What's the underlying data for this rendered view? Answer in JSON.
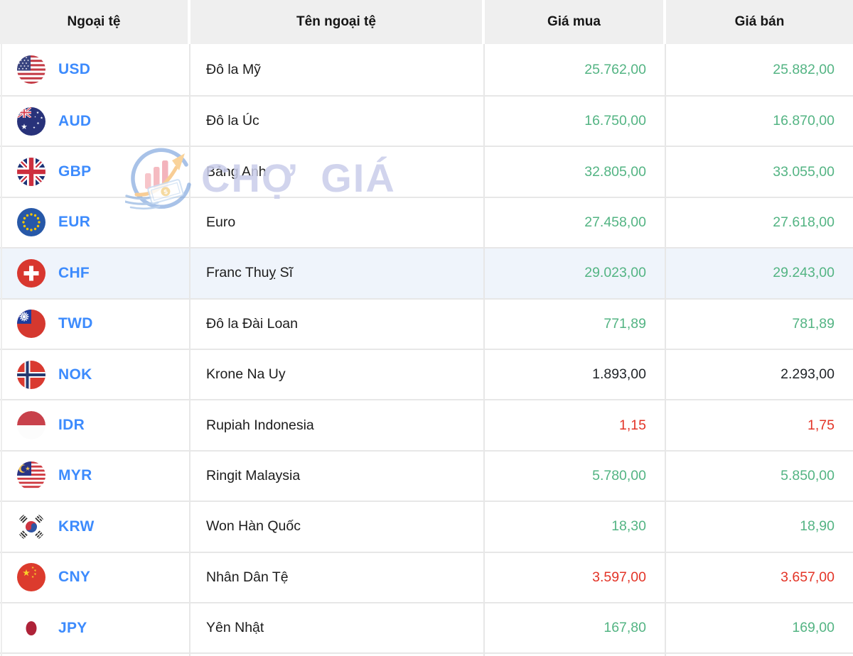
{
  "table": {
    "headers": [
      "Ngoại tệ",
      "Tên ngoại tệ",
      "Giá mua",
      "Giá bán"
    ],
    "rows": [
      {
        "code": "USD",
        "flag": "us",
        "name": "Đô la Mỹ",
        "buy": "25.762,00",
        "sell": "25.882,00",
        "trend": "up",
        "highlighted": false
      },
      {
        "code": "AUD",
        "flag": "australia",
        "name": "Đô la Úc",
        "buy": "16.750,00",
        "sell": "16.870,00",
        "trend": "up",
        "highlighted": false
      },
      {
        "code": "GBP",
        "flag": "uk",
        "name": "Bảng Anh",
        "buy": "32.805,00",
        "sell": "33.055,00",
        "trend": "up",
        "highlighted": false
      },
      {
        "code": "EUR",
        "flag": "eu",
        "name": "Euro",
        "buy": "27.458,00",
        "sell": "27.618,00",
        "trend": "up",
        "highlighted": false
      },
      {
        "code": "CHF",
        "flag": "switzerland",
        "name": "Franc Thuỵ Sĩ",
        "buy": "29.023,00",
        "sell": "29.243,00",
        "trend": "up",
        "highlighted": true
      },
      {
        "code": "TWD",
        "flag": "taiwan",
        "name": "Đô la Đài Loan",
        "buy": "771,89",
        "sell": "781,89",
        "trend": "up",
        "highlighted": false
      },
      {
        "code": "NOK",
        "flag": "norway",
        "name": "Krone Na Uy",
        "buy": "1.893,00",
        "sell": "2.293,00",
        "trend": "neutral",
        "highlighted": false
      },
      {
        "code": "IDR",
        "flag": "indonesia",
        "name": "Rupiah Indonesia",
        "buy": "1,15",
        "sell": "1,75",
        "trend": "down",
        "highlighted": false
      },
      {
        "code": "MYR",
        "flag": "malaysia",
        "name": "Ringit Malaysia",
        "buy": "5.780,00",
        "sell": "5.850,00",
        "trend": "up",
        "highlighted": false
      },
      {
        "code": "KRW",
        "flag": "south-korea",
        "name": "Won Hàn Quốc",
        "buy": "18,30",
        "sell": "18,90",
        "trend": "up",
        "highlighted": false
      },
      {
        "code": "CNY",
        "flag": "china",
        "name": "Nhân Dân Tệ",
        "buy": "3.597,00",
        "sell": "3.657,00",
        "trend": "down",
        "highlighted": false
      },
      {
        "code": "JPY",
        "flag": "japan",
        "name": "Yên Nhật",
        "buy": "167,80",
        "sell": "169,00",
        "trend": "up",
        "highlighted": false
      }
    ]
  },
  "watermark": {
    "text": "CHỢ GIÁ"
  },
  "colors": {
    "price_up": "#53b483",
    "price_down": "#e33427",
    "price_neutral": "#212529",
    "currency_code": "#3d8bfd",
    "highlight_row": "#eff4fb",
    "header_bg": "#efefef"
  }
}
